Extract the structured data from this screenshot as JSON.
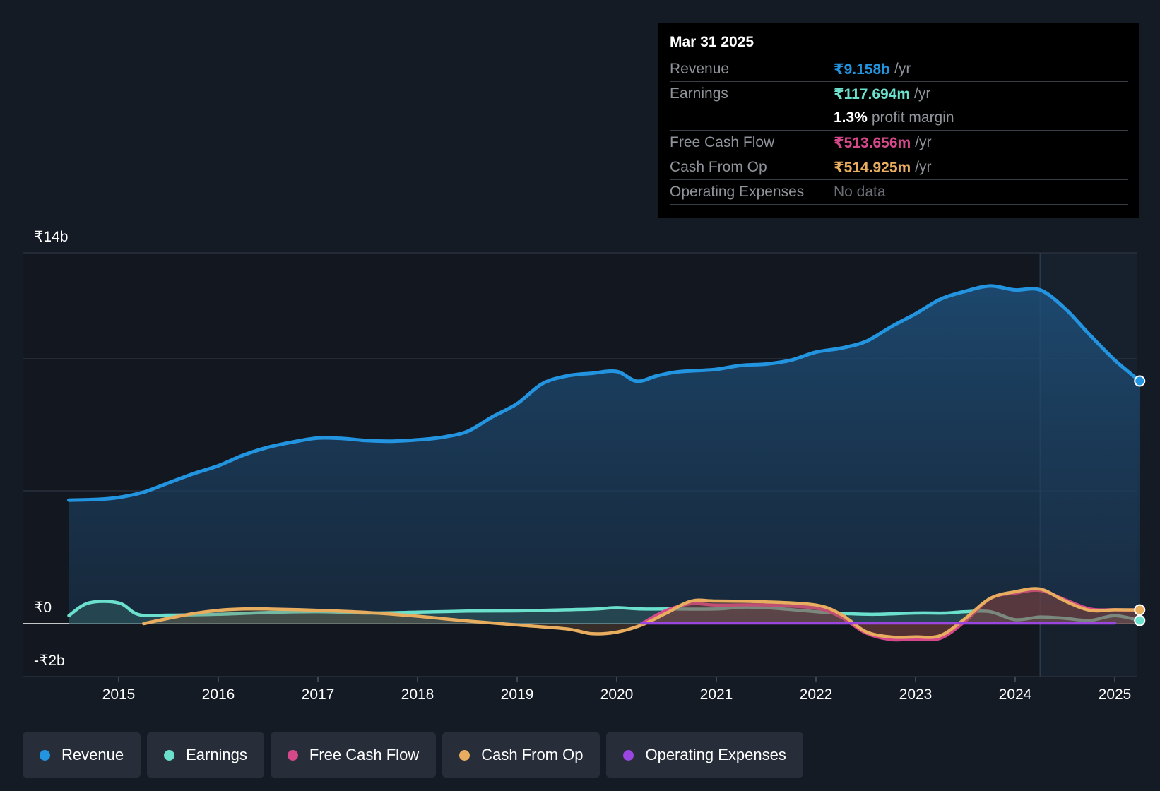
{
  "chart_data": {
    "type": "area",
    "title": "",
    "xlabel": "",
    "ylabel": "",
    "x_ticks": [
      "2015",
      "2016",
      "2017",
      "2018",
      "2019",
      "2020",
      "2021",
      "2022",
      "2023",
      "2024",
      "2025"
    ],
    "x_range": [
      2014.0,
      2025.25
    ],
    "y_tick_labels": [
      {
        "value": 14,
        "label": "₹14b"
      },
      {
        "value": 0,
        "label": "₹0"
      },
      {
        "value": -2,
        "label": "-₹2b"
      }
    ],
    "gridline_values": [
      14,
      10,
      5,
      0,
      -2
    ],
    "ylim": [
      -2,
      14
    ],
    "unit": "₹b",
    "forecast_start": 2024.25,
    "series": [
      {
        "name": "Revenue",
        "color": "#2394df",
        "filled": true,
        "points": [
          [
            2014.5,
            4.65
          ],
          [
            2014.8,
            4.68
          ],
          [
            2015.0,
            4.75
          ],
          [
            2015.25,
            4.95
          ],
          [
            2015.5,
            5.3
          ],
          [
            2015.75,
            5.65
          ],
          [
            2016.0,
            5.95
          ],
          [
            2016.25,
            6.35
          ],
          [
            2016.5,
            6.65
          ],
          [
            2016.75,
            6.85
          ],
          [
            2017.0,
            7.0
          ],
          [
            2017.25,
            6.98
          ],
          [
            2017.5,
            6.9
          ],
          [
            2017.75,
            6.88
          ],
          [
            2018.0,
            6.93
          ],
          [
            2018.25,
            7.03
          ],
          [
            2018.5,
            7.25
          ],
          [
            2018.75,
            7.8
          ],
          [
            2019.0,
            8.3
          ],
          [
            2019.25,
            9.05
          ],
          [
            2019.5,
            9.35
          ],
          [
            2019.75,
            9.45
          ],
          [
            2020.0,
            9.52
          ],
          [
            2020.2,
            9.15
          ],
          [
            2020.4,
            9.35
          ],
          [
            2020.6,
            9.5
          ],
          [
            2020.8,
            9.55
          ],
          [
            2021.0,
            9.6
          ],
          [
            2021.25,
            9.75
          ],
          [
            2021.5,
            9.8
          ],
          [
            2021.75,
            9.95
          ],
          [
            2022.0,
            10.25
          ],
          [
            2022.25,
            10.4
          ],
          [
            2022.5,
            10.65
          ],
          [
            2022.75,
            11.2
          ],
          [
            2023.0,
            11.7
          ],
          [
            2023.25,
            12.25
          ],
          [
            2023.5,
            12.55
          ],
          [
            2023.75,
            12.75
          ],
          [
            2024.0,
            12.6
          ],
          [
            2024.25,
            12.6
          ],
          [
            2024.5,
            11.9
          ],
          [
            2024.75,
            10.9
          ],
          [
            2025.0,
            9.95
          ],
          [
            2025.25,
            9.158
          ]
        ]
      },
      {
        "name": "Earnings",
        "color": "#6be0cd",
        "filled": true,
        "points": [
          [
            2014.5,
            0.3
          ],
          [
            2014.7,
            0.78
          ],
          [
            2015.0,
            0.78
          ],
          [
            2015.2,
            0.34
          ],
          [
            2015.5,
            0.32
          ],
          [
            2016.0,
            0.35
          ],
          [
            2016.5,
            0.42
          ],
          [
            2017.0,
            0.45
          ],
          [
            2017.5,
            0.4
          ],
          [
            2018.0,
            0.43
          ],
          [
            2018.5,
            0.47
          ],
          [
            2019.0,
            0.48
          ],
          [
            2019.5,
            0.52
          ],
          [
            2019.8,
            0.55
          ],
          [
            2020.0,
            0.6
          ],
          [
            2020.25,
            0.55
          ],
          [
            2020.5,
            0.55
          ],
          [
            2021.0,
            0.55
          ],
          [
            2021.25,
            0.62
          ],
          [
            2021.5,
            0.6
          ],
          [
            2022.0,
            0.45
          ],
          [
            2022.3,
            0.38
          ],
          [
            2022.6,
            0.35
          ],
          [
            2023.0,
            0.4
          ],
          [
            2023.3,
            0.4
          ],
          [
            2023.5,
            0.45
          ],
          [
            2023.75,
            0.45
          ],
          [
            2024.0,
            0.15
          ],
          [
            2024.25,
            0.25
          ],
          [
            2024.5,
            0.2
          ],
          [
            2024.75,
            0.12
          ],
          [
            2025.0,
            0.3
          ],
          [
            2025.25,
            0.118
          ]
        ]
      },
      {
        "name": "Free Cash Flow",
        "color": "#d5488a",
        "filled": true,
        "points": [
          [
            2020.25,
            0.0
          ],
          [
            2020.5,
            0.5
          ],
          [
            2020.75,
            0.75
          ],
          [
            2021.0,
            0.7
          ],
          [
            2021.5,
            0.7
          ],
          [
            2022.0,
            0.58
          ],
          [
            2022.25,
            0.25
          ],
          [
            2022.5,
            -0.35
          ],
          [
            2022.75,
            -0.6
          ],
          [
            2023.0,
            -0.58
          ],
          [
            2023.25,
            -0.55
          ],
          [
            2023.5,
            0.1
          ],
          [
            2023.75,
            0.95
          ],
          [
            2024.0,
            1.15
          ],
          [
            2024.25,
            1.25
          ],
          [
            2024.5,
            0.9
          ],
          [
            2024.75,
            0.55
          ],
          [
            2025.0,
            0.52
          ],
          [
            2025.25,
            0.514
          ]
        ]
      },
      {
        "name": "Cash From Op",
        "color": "#e8ad5e",
        "filled": true,
        "points": [
          [
            2015.25,
            0.0
          ],
          [
            2015.5,
            0.2
          ],
          [
            2015.75,
            0.38
          ],
          [
            2016.0,
            0.5
          ],
          [
            2016.25,
            0.55
          ],
          [
            2016.5,
            0.55
          ],
          [
            2017.0,
            0.5
          ],
          [
            2017.5,
            0.42
          ],
          [
            2018.0,
            0.28
          ],
          [
            2018.5,
            0.1
          ],
          [
            2019.0,
            -0.05
          ],
          [
            2019.5,
            -0.2
          ],
          [
            2019.75,
            -0.38
          ],
          [
            2020.0,
            -0.32
          ],
          [
            2020.25,
            -0.05
          ],
          [
            2020.5,
            0.4
          ],
          [
            2020.75,
            0.85
          ],
          [
            2021.0,
            0.85
          ],
          [
            2021.5,
            0.82
          ],
          [
            2022.0,
            0.7
          ],
          [
            2022.25,
            0.35
          ],
          [
            2022.5,
            -0.3
          ],
          [
            2022.75,
            -0.5
          ],
          [
            2023.0,
            -0.5
          ],
          [
            2023.25,
            -0.45
          ],
          [
            2023.5,
            0.2
          ],
          [
            2023.75,
            0.95
          ],
          [
            2024.0,
            1.2
          ],
          [
            2024.25,
            1.3
          ],
          [
            2024.5,
            0.85
          ],
          [
            2024.75,
            0.5
          ],
          [
            2025.0,
            0.52
          ],
          [
            2025.25,
            0.515
          ]
        ]
      },
      {
        "name": "Operating Expenses",
        "color": "#9b46e0",
        "filled": false,
        "points": [
          [
            2020.25,
            0.02
          ],
          [
            2025.0,
            0.02
          ]
        ]
      }
    ]
  },
  "tooltip": {
    "date": "Mar 31 2025",
    "rows": [
      {
        "label": "Revenue",
        "value": "₹9.158b",
        "unit": "/yr",
        "color": "#2394df"
      },
      {
        "label": "Earnings",
        "value": "₹117.694m",
        "unit": "/yr",
        "color": "#6be0cd"
      },
      {
        "label": "",
        "value": "1.3%",
        "unit": "profit margin",
        "color": "#ffffff"
      },
      {
        "label": "Free Cash Flow",
        "value": "₹513.656m",
        "unit": "/yr",
        "color": "#d5488a"
      },
      {
        "label": "Cash From Op",
        "value": "₹514.925m",
        "unit": "/yr",
        "color": "#e8ad5e"
      },
      {
        "label": "Operating Expenses",
        "value": "No data",
        "unit": "",
        "color": "#6b7078"
      }
    ]
  },
  "legend": [
    {
      "label": "Revenue",
      "color": "#2394df"
    },
    {
      "label": "Earnings",
      "color": "#6be0cd"
    },
    {
      "label": "Free Cash Flow",
      "color": "#d5488a"
    },
    {
      "label": "Cash From Op",
      "color": "#e8ad5e"
    },
    {
      "label": "Operating Expenses",
      "color": "#9b46e0"
    }
  ]
}
